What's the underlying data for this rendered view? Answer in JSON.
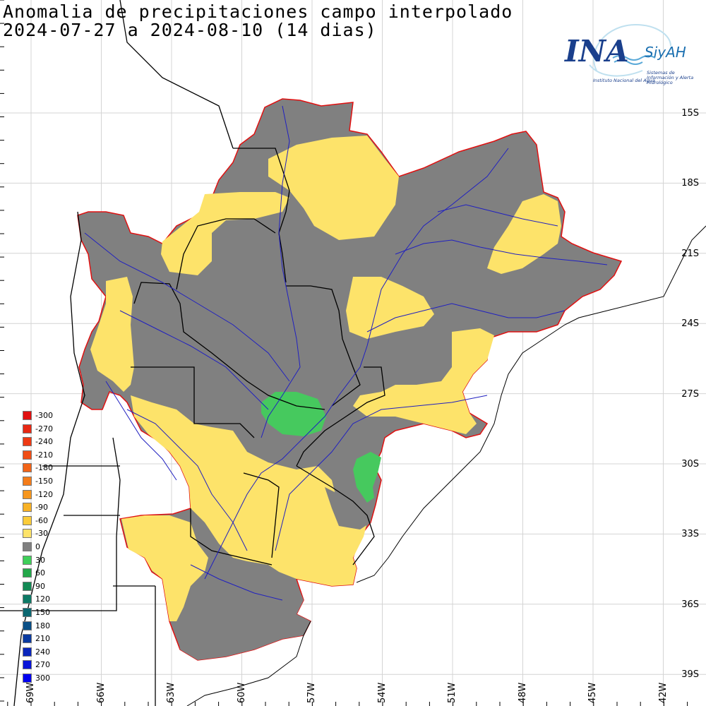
{
  "title": {
    "line1": "Anomalia de precipitaciones campo interpolado",
    "line2": "2024-07-27 a 2024-08-10 (14 dias)"
  },
  "logo": {
    "name": "INA",
    "system": "SiyAH",
    "institute": "Instituto Nacional del Agua",
    "system_full": "Sistemas de Información y Alerta Hidrológico"
  },
  "latitude_labels": [
    "15S",
    "18S",
    "21S",
    "24S",
    "27S",
    "30S",
    "33S",
    "36S",
    "39S"
  ],
  "longitude_labels": [
    "69W",
    "66W",
    "63W",
    "60W",
    "57W",
    "54W",
    "51W",
    "48W",
    "45W",
    "42W"
  ],
  "legend": {
    "items": [
      {
        "label": "-300",
        "color": "#e01010"
      },
      {
        "label": "-270",
        "color": "#e82814"
      },
      {
        "label": "-240",
        "color": "#ee3a14"
      },
      {
        "label": "-210",
        "color": "#f04e16"
      },
      {
        "label": "-180",
        "color": "#f26418"
      },
      {
        "label": "-150",
        "color": "#f47c1a"
      },
      {
        "label": "-120",
        "color": "#f6961e"
      },
      {
        "label": "-90",
        "color": "#f8b226"
      },
      {
        "label": "-60",
        "color": "#fbcc3a"
      },
      {
        "label": "-30",
        "color": "#fde36a"
      },
      {
        "label": "0",
        "color": "#808080"
      },
      {
        "label": "30",
        "color": "#3fcf5a"
      },
      {
        "label": "60",
        "color": "#24a84a"
      },
      {
        "label": "90",
        "color": "#138a55"
      },
      {
        "label": "120",
        "color": "#0d7a66"
      },
      {
        "label": "150",
        "color": "#0b6770"
      },
      {
        "label": "180",
        "color": "#0a4f86"
      },
      {
        "label": "210",
        "color": "#0a3aa0"
      },
      {
        "label": "240",
        "color": "#0a26bc"
      },
      {
        "label": "270",
        "color": "#0814d8"
      },
      {
        "label": "300",
        "color": "#0000f0"
      }
    ]
  },
  "colors": {
    "normal": "#808080",
    "dry": "#fde36a",
    "wet": "#46c95e",
    "basin_outline": "#e01010",
    "rivers": "#2020c0",
    "borders": "#000000",
    "grid": "#cfcfcf"
  }
}
